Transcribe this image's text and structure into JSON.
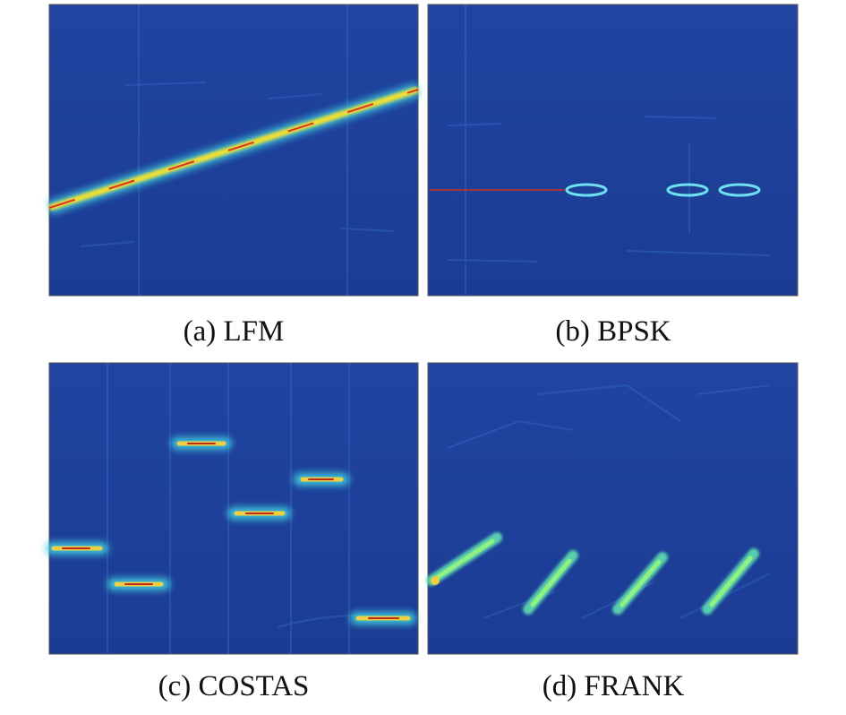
{
  "panels": [
    {
      "caption": "(a) LFM"
    },
    {
      "caption": "(b) BPSK"
    },
    {
      "caption": "(c) COSTAS"
    },
    {
      "caption": "(d) FRANK"
    }
  ]
}
